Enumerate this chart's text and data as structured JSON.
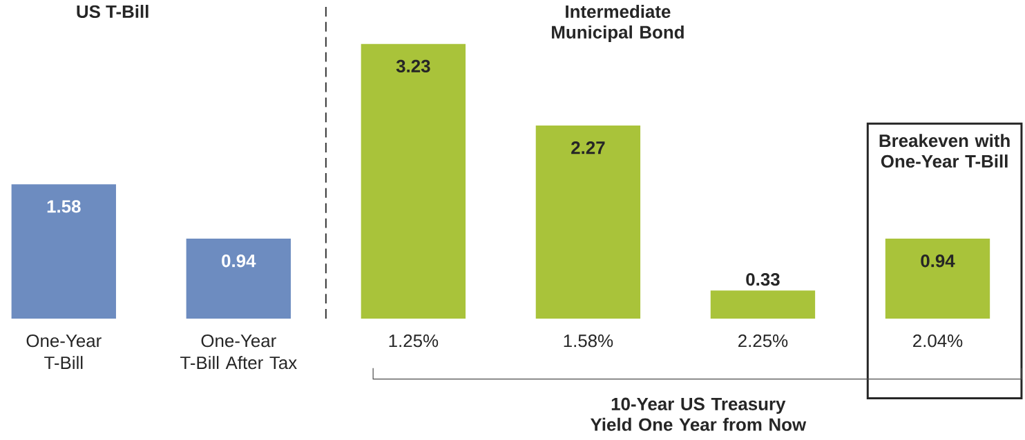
{
  "chart_data": {
    "type": "bar",
    "categories": [
      "One-Year T-Bill",
      "One-Year T-Bill After Tax",
      "1.25%",
      "1.58%",
      "2.25%",
      "2.04%"
    ],
    "values": [
      1.58,
      0.94,
      3.23,
      2.27,
      0.33,
      0.94
    ],
    "colors": [
      "#6d8cc0",
      "#6d8cc0",
      "#a9c33a",
      "#a9c33a",
      "#a9c33a",
      "#a9c33a"
    ],
    "data_labels": true,
    "annotations": [
      "US T-Bill",
      "Intermediate Municipal Bond",
      "Breakeven with One-Year T-Bill",
      "10-Year US Treasury Yield One Year from Now"
    ]
  }
}
